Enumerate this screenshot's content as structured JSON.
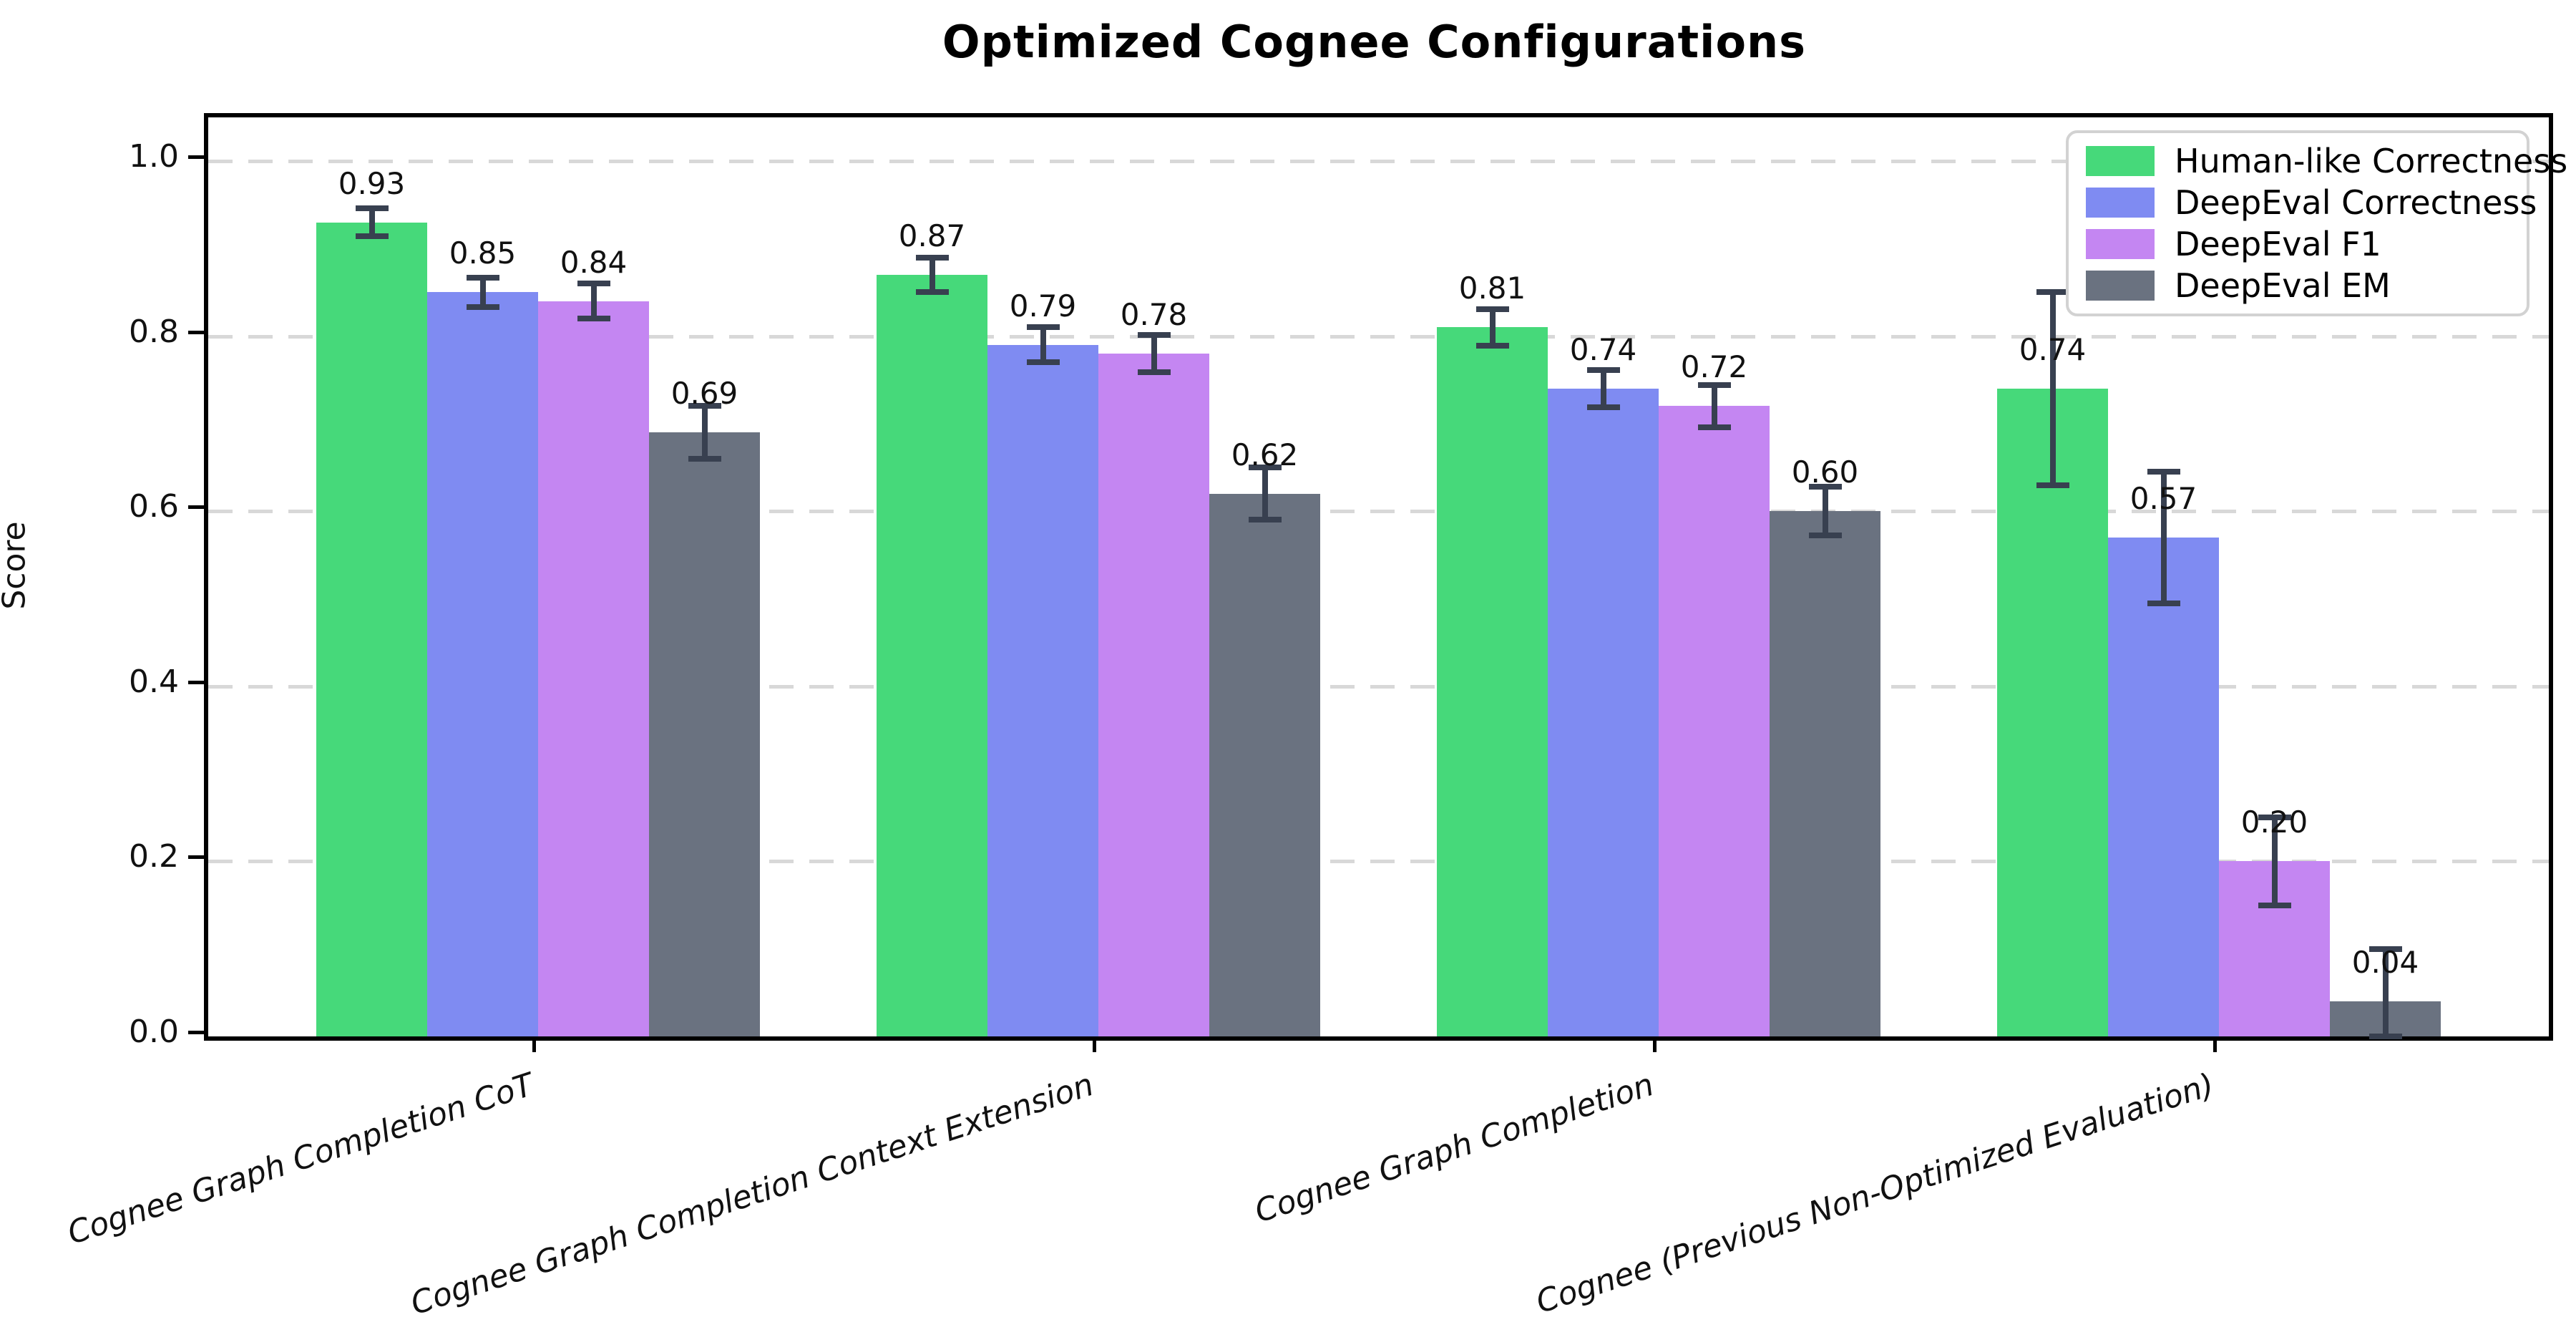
{
  "chart_data": {
    "type": "bar",
    "title": "Optimized Cognee Configurations",
    "ylabel": "Score",
    "xlabel": "",
    "categories": [
      "Cognee Graph Completion CoT",
      "Cognee Graph Completion Context Extension",
      "Cognee Graph Completion",
      "Cognee (Previous Non-Optimized Evaluation)"
    ],
    "series": [
      {
        "name": "Human-like Correctness",
        "color": "#46d97a",
        "values": [
          0.93,
          0.87,
          0.81,
          0.74
        ],
        "errors": [
          0.016,
          0.02,
          0.021,
          0.11
        ]
      },
      {
        "name": "DeepEval Correctness",
        "color": "#7f8bf2",
        "values": [
          0.85,
          0.79,
          0.74,
          0.57
        ],
        "errors": [
          0.017,
          0.02,
          0.021,
          0.075
        ]
      },
      {
        "name": "DeepEval F1",
        "color": "#c486f2",
        "values": [
          0.84,
          0.78,
          0.72,
          0.2
        ],
        "errors": [
          0.02,
          0.021,
          0.024,
          0.05
        ]
      },
      {
        "name": "DeepEval EM",
        "color": "#6a7280",
        "values": [
          0.69,
          0.62,
          0.6,
          0.04
        ],
        "errors": [
          0.03,
          0.03,
          0.028,
          0.06
        ]
      }
    ],
    "yticks": [
      "0.0",
      "0.2",
      "0.4",
      "0.6",
      "0.8",
      "1.0"
    ],
    "ylim": [
      0,
      1.05
    ],
    "grid": "horizontal-dashed",
    "legend_position": "upper-right",
    "bar_label_format": "2-decimals"
  },
  "colors": {
    "error_bar": "#384050",
    "grid": "#d8d8d8",
    "axis": "#000000",
    "legend_border": "#d2d2d2",
    "background": "#ffffff"
  }
}
